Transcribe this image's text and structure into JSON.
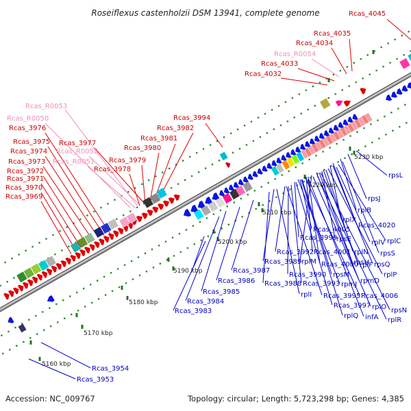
{
  "title": "Roseiflexus castenholzii DSM 13941, complete genome",
  "footer": {
    "accession": "Accession: NC_009767",
    "summary": "Topology: circular; Length: 5,723,298 bp; Genes: 4,385"
  },
  "colors": {
    "backbone": "#8a8a8a",
    "forward_strand": "#dd0000",
    "reverse_strand": "#0a16dd",
    "rna": "#ef8fb8",
    "tick_dots": "#2e8b2e",
    "leader_red": "#dd0000",
    "leader_pink": "#f08cb8",
    "leader_blue": "#0000cc"
  },
  "ticks": [
    "5160 kbp",
    "5170 kbp",
    "5180 kbp",
    "5190 kbp",
    "5200 kbp",
    "5210 kbp",
    "5220 kbp",
    "5230 kbp"
  ],
  "top_labels": [
    {
      "text": "Rcas_4045",
      "kind": "red"
    },
    {
      "text": "Rcas_4035",
      "kind": "red"
    },
    {
      "text": "Rcas_4034",
      "kind": "red"
    },
    {
      "text": "Rcas_R0054",
      "kind": "pink"
    },
    {
      "text": "Rcas_4033",
      "kind": "red"
    },
    {
      "text": "Rcas_4032",
      "kind": "red"
    },
    {
      "text": "Rcas_R0053",
      "kind": "pink"
    },
    {
      "text": "Rcas_3994",
      "kind": "red"
    },
    {
      "text": "Rcas_R0050",
      "kind": "pink"
    },
    {
      "text": "Rcas_3982",
      "kind": "red"
    },
    {
      "text": "Rcas_3976",
      "kind": "red"
    },
    {
      "text": "Rcas_3981",
      "kind": "red"
    },
    {
      "text": "Rcas_3975",
      "kind": "red"
    },
    {
      "text": "Rcas_3977",
      "kind": "red"
    },
    {
      "text": "Rcas_3980",
      "kind": "red"
    },
    {
      "text": "Rcas_3974",
      "kind": "red"
    },
    {
      "text": "Rcas_R0052",
      "kind": "pink"
    },
    {
      "text": "Rcas_3973",
      "kind": "red"
    },
    {
      "text": "Rcas_R0051",
      "kind": "pink"
    },
    {
      "text": "Rcas_3979",
      "kind": "red"
    },
    {
      "text": "Rcas_3972",
      "kind": "red"
    },
    {
      "text": "Rcas_3978",
      "kind": "red"
    },
    {
      "text": "Rcas_3971",
      "kind": "red"
    },
    {
      "text": "Rcas_3970",
      "kind": "red"
    },
    {
      "text": "Rcas_3969",
      "kind": "red"
    }
  ],
  "bottom_labels": [
    {
      "text": "rpsL"
    },
    {
      "text": "rpsJ"
    },
    {
      "text": "rplB"
    },
    {
      "text": "rplX"
    },
    {
      "text": "Rcas_4020"
    },
    {
      "text": "Rcas_4005"
    },
    {
      "text": "rplC"
    },
    {
      "text": "rpsE"
    },
    {
      "text": "Rcas_3999"
    },
    {
      "text": "rplV"
    },
    {
      "text": "Rcas_3992"
    },
    {
      "text": "rplN"
    },
    {
      "text": "Rcas_4001"
    },
    {
      "text": "rpsS"
    },
    {
      "text": "Rcas_3989"
    },
    {
      "text": "rplM"
    },
    {
      "text": "rpsH"
    },
    {
      "text": "Rcas_4000"
    },
    {
      "text": "rplF"
    },
    {
      "text": "rpsQ"
    },
    {
      "text": "Rcas_3987"
    },
    {
      "text": "Rcas_3990"
    },
    {
      "text": "rpsM"
    },
    {
      "text": "rplP"
    },
    {
      "text": "Rcas_3986"
    },
    {
      "text": "Rcas_3988"
    },
    {
      "text": "Rcas_3993"
    },
    {
      "text": "rpmJ"
    },
    {
      "text": "rpmD"
    },
    {
      "text": "Rcas_3985"
    },
    {
      "text": "rplI"
    },
    {
      "text": "Rcas_3995"
    },
    {
      "text": "Rcas_4006"
    },
    {
      "text": "Rcas_3984"
    },
    {
      "text": "Rcas_3997"
    },
    {
      "text": "rplO"
    },
    {
      "text": "rpsN"
    },
    {
      "text": "Rcas_3983"
    },
    {
      "text": "rplQ"
    },
    {
      "text": "infA"
    },
    {
      "text": "rplR"
    },
    {
      "text": "Rcas_3954"
    },
    {
      "text": "Rcas_3953"
    }
  ]
}
